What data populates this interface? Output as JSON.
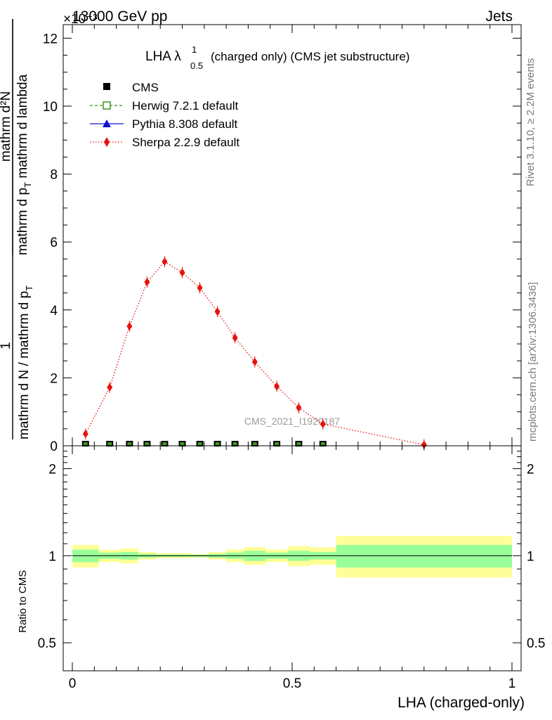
{
  "header": {
    "energy_label": "13000 GeV pp",
    "exponent_label": "×10⁻³",
    "category_label": "Jets"
  },
  "side_labels": {
    "rivet": "Rivet 3.1.10, ≥ 2.2M events",
    "mcplots": "mcplots.cern.ch [arXiv:1306.3436]"
  },
  "watermark": "CMS_2021_I1920187",
  "chart_data": [
    {
      "type": "line",
      "title": "LHA λ",
      "title_superscript": "1",
      "title_subscript": "0.5",
      "title_rest": "(charged only) (CMS jet substructure)",
      "ylabel_numerator": "mathrm d²N",
      "ylabel_numerator_sub": "mathrm d p",
      "ylabel_numerator_sub2": "T",
      "ylabel_numerator_rest": " mathrm d lambda",
      "ylabel_fraction": "1",
      "ylabel_denominator": "mathrm d N / mathrm d p",
      "ylabel_denominator_sub": "T",
      "xlim": [
        -0.02,
        1.02
      ],
      "ylim": [
        0,
        12.4
      ],
      "yticks": [
        0,
        2,
        4,
        6,
        8,
        10,
        12
      ],
      "ytick_labels": [
        "0",
        "2",
        "4",
        "6",
        "8",
        "10",
        "12"
      ],
      "legend_position": "top-left",
      "legend": [
        {
          "label": "CMS",
          "color": "#000000",
          "marker": "square"
        },
        {
          "label": "Herwig 7.2.1 default",
          "color": "#3a9a1a",
          "marker": "open-square",
          "line": "dashed"
        },
        {
          "label": "Pythia 8.308 default",
          "color": "#1010cc",
          "marker": "triangle",
          "line": "solid"
        },
        {
          "label": "Sherpa 2.2.9 default",
          "color": "#e8120e",
          "marker": "diamond",
          "line": "dotted"
        }
      ],
      "series": [
        {
          "name": "CMS",
          "color": "#000000",
          "x": [
            0.03,
            0.085,
            0.13,
            0.17,
            0.21,
            0.25,
            0.29,
            0.33,
            0.37,
            0.415,
            0.465,
            0.515,
            0.57
          ],
          "values": [
            0.012,
            0.012,
            0.012,
            0.012,
            0.012,
            0.012,
            0.012,
            0.012,
            0.012,
            0.012,
            0.012,
            0.012,
            0.012
          ]
        },
        {
          "name": "Sherpa 2.2.9 default",
          "color": "#e8120e",
          "x": [
            0.03,
            0.085,
            0.13,
            0.17,
            0.21,
            0.25,
            0.29,
            0.33,
            0.37,
            0.415,
            0.465,
            0.515,
            0.57,
            0.8
          ],
          "values": [
            0.35,
            1.72,
            3.52,
            4.82,
            5.42,
            5.1,
            4.65,
            3.95,
            3.18,
            2.47,
            1.75,
            1.12,
            0.64,
            0.03
          ]
        }
      ]
    },
    {
      "type": "area",
      "ylabel": "Ratio to CMS",
      "xlabel": "LHA (charged-only)",
      "scale": "log",
      "ylim": [
        0.4,
        2.4
      ],
      "yticks": [
        0.5,
        1,
        2
      ],
      "ytick_labels": [
        "0.5",
        "1",
        "2"
      ],
      "xticks": [
        0,
        0.5,
        1
      ],
      "xtick_labels": [
        "0",
        "0.5",
        "1"
      ],
      "bins": [
        {
          "lo": 0.0,
          "hi": 0.06,
          "inner": [
            0.95,
            1.05
          ],
          "outer": [
            0.91,
            1.09
          ]
        },
        {
          "lo": 0.06,
          "hi": 0.11,
          "inner": [
            0.975,
            1.025
          ],
          "outer": [
            0.95,
            1.05
          ]
        },
        {
          "lo": 0.11,
          "hi": 0.15,
          "inner": [
            0.97,
            1.03
          ],
          "outer": [
            0.94,
            1.06
          ]
        },
        {
          "lo": 0.15,
          "hi": 0.19,
          "inner": [
            0.985,
            1.015
          ],
          "outer": [
            0.97,
            1.03
          ]
        },
        {
          "lo": 0.19,
          "hi": 0.23,
          "inner": [
            0.99,
            1.01
          ],
          "outer": [
            0.98,
            1.02
          ]
        },
        {
          "lo": 0.23,
          "hi": 0.27,
          "inner": [
            0.99,
            1.01
          ],
          "outer": [
            0.98,
            1.02
          ]
        },
        {
          "lo": 0.27,
          "hi": 0.31,
          "inner": [
            0.992,
            1.008
          ],
          "outer": [
            0.985,
            1.015
          ]
        },
        {
          "lo": 0.31,
          "hi": 0.35,
          "inner": [
            0.985,
            1.015
          ],
          "outer": [
            0.97,
            1.03
          ]
        },
        {
          "lo": 0.35,
          "hi": 0.39,
          "inner": [
            0.975,
            1.025
          ],
          "outer": [
            0.95,
            1.05
          ]
        },
        {
          "lo": 0.39,
          "hi": 0.44,
          "inner": [
            0.96,
            1.04
          ],
          "outer": [
            0.93,
            1.07
          ]
        },
        {
          "lo": 0.44,
          "hi": 0.49,
          "inner": [
            0.975,
            1.025
          ],
          "outer": [
            0.95,
            1.05
          ]
        },
        {
          "lo": 0.49,
          "hi": 0.54,
          "inner": [
            0.96,
            1.04
          ],
          "outer": [
            0.92,
            1.08
          ]
        },
        {
          "lo": 0.54,
          "hi": 0.6,
          "inner": [
            0.97,
            1.03
          ],
          "outer": [
            0.93,
            1.07
          ]
        },
        {
          "lo": 0.6,
          "hi": 1.0,
          "inner": [
            0.91,
            1.09
          ],
          "outer": [
            0.84,
            1.17
          ]
        }
      ],
      "colors": {
        "inner": "#99ff99",
        "outer": "#ffff99"
      }
    }
  ]
}
